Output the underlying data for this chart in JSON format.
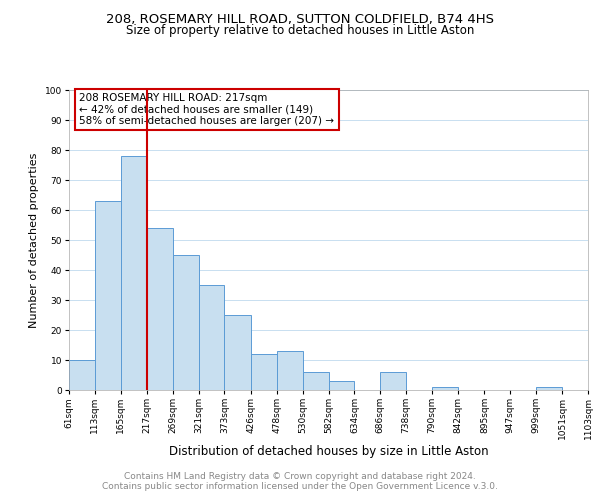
{
  "title1": "208, ROSEMARY HILL ROAD, SUTTON COLDFIELD, B74 4HS",
  "title2": "Size of property relative to detached houses in Little Aston",
  "xlabel": "Distribution of detached houses by size in Little Aston",
  "ylabel": "Number of detached properties",
  "bin_edges": [
    61,
    113,
    165,
    217,
    269,
    321,
    373,
    426,
    478,
    530,
    582,
    634,
    686,
    738,
    790,
    842,
    895,
    947,
    999,
    1051,
    1103
  ],
  "counts": [
    10,
    63,
    78,
    54,
    45,
    35,
    25,
    12,
    13,
    6,
    3,
    0,
    6,
    0,
    1,
    0,
    0,
    0,
    1,
    0
  ],
  "bar_color": "#c8dff0",
  "bar_edge_color": "#5b9bd5",
  "vline_x": 217,
  "vline_color": "#cc0000",
  "annotation_line1": "208 ROSEMARY HILL ROAD: 217sqm",
  "annotation_line2": "← 42% of detached houses are smaller (149)",
  "annotation_line3": "58% of semi-detached houses are larger (207) →",
  "annotation_box_color": "#ffffff",
  "annotation_box_edge_color": "#cc0000",
  "ylim": [
    0,
    100
  ],
  "yticks": [
    0,
    10,
    20,
    30,
    40,
    50,
    60,
    70,
    80,
    90,
    100
  ],
  "grid_color": "#c8dff0",
  "footer1": "Contains HM Land Registry data © Crown copyright and database right 2024.",
  "footer2": "Contains public sector information licensed under the Open Government Licence v.3.0.",
  "tick_labels": [
    "61sqm",
    "113sqm",
    "165sqm",
    "217sqm",
    "269sqm",
    "321sqm",
    "373sqm",
    "426sqm",
    "478sqm",
    "530sqm",
    "582sqm",
    "634sqm",
    "686sqm",
    "738sqm",
    "790sqm",
    "842sqm",
    "895sqm",
    "947sqm",
    "999sqm",
    "1051sqm",
    "1103sqm"
  ],
  "title1_fontsize": 9.5,
  "title2_fontsize": 8.5,
  "xlabel_fontsize": 8.5,
  "ylabel_fontsize": 8,
  "tick_fontsize": 6.5,
  "annotation_fontsize": 7.5,
  "footer_fontsize": 6.5
}
